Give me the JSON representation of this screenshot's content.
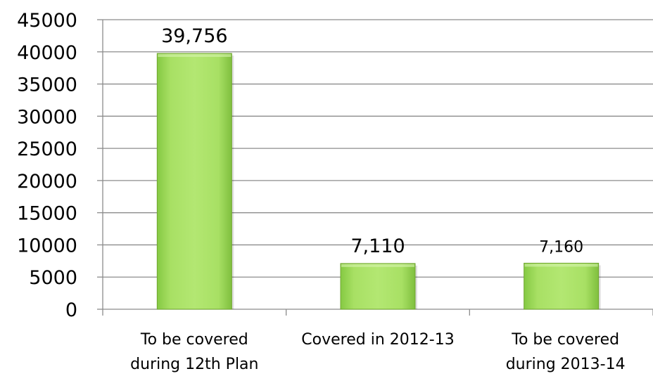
{
  "chart_data": {
    "type": "bar",
    "title": "",
    "xlabel": "",
    "ylabel": "",
    "categories": [
      [
        "To be covered",
        "during 12th Plan"
      ],
      [
        "Covered in 2012-13"
      ],
      [
        "To be covered",
        "during 2013-14"
      ]
    ],
    "values": [
      39756,
      7110,
      7160
    ],
    "data_labels": [
      "39,756",
      "7,110",
      "7,160"
    ],
    "ylim": [
      0,
      45000
    ],
    "y_ticks": [
      0,
      5000,
      10000,
      15000,
      20000,
      25000,
      30000,
      35000,
      40000,
      45000
    ],
    "y_tick_labels": [
      "0",
      "5000",
      "10000",
      "15000",
      "20000",
      "25000",
      "30000",
      "35000",
      "40000",
      "45000"
    ],
    "grid": true,
    "legend": "none",
    "colors": {
      "bar_fill_light": "#c2ec8a",
      "bar_fill_mid": "#a0dc5c",
      "bar_fill_dark": "#7fc13d",
      "bar_stroke": "#6fa52f",
      "grid": "#8c8c8c"
    }
  }
}
